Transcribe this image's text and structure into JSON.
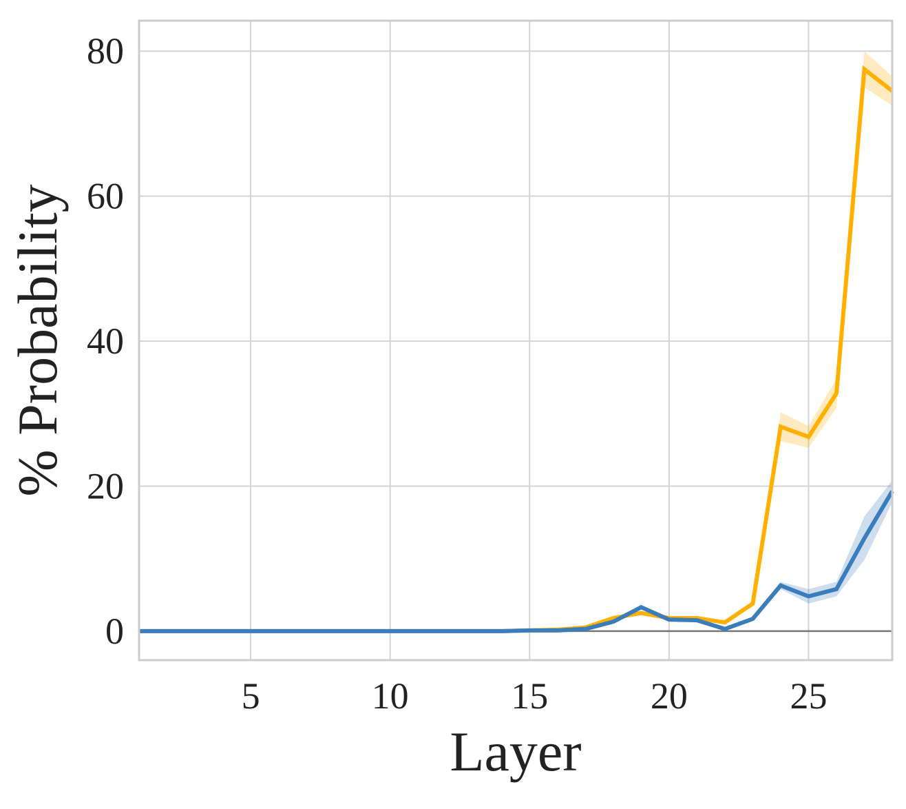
{
  "chart_data": {
    "type": "line",
    "x_label": "Layer",
    "y_label": "% Probability",
    "x": [
      1,
      2,
      3,
      4,
      5,
      6,
      7,
      8,
      9,
      10,
      11,
      12,
      13,
      14,
      15,
      16,
      17,
      18,
      19,
      20,
      21,
      22,
      23,
      24,
      25,
      26,
      27,
      28
    ],
    "series": [
      {
        "color": "#ffb000",
        "values": [
          0,
          0,
          0,
          0,
          0,
          0,
          0,
          0,
          0,
          0,
          0,
          0,
          0,
          0,
          0.1,
          0.2,
          0.5,
          1.8,
          2.5,
          1.8,
          1.8,
          1.2,
          3.8,
          28.2,
          26.8,
          32.8,
          77.5,
          74.5
        ],
        "errors": [
          0,
          0,
          0,
          0,
          0,
          0,
          0,
          0,
          0,
          0,
          0,
          0,
          0,
          0,
          0,
          0,
          0,
          0.2,
          0.3,
          0.2,
          0.2,
          0.2,
          0.4,
          2,
          1.5,
          2,
          2.5,
          2
        ]
      },
      {
        "color": "#3a7dba",
        "values": [
          0,
          0,
          0,
          0,
          0,
          0,
          0,
          0,
          0,
          0,
          0,
          0,
          0,
          0,
          0.1,
          0.1,
          0.3,
          1.3,
          3.3,
          1.6,
          1.5,
          0.3,
          1.7,
          6.3,
          4.8,
          5.8,
          12.8,
          19.3
        ],
        "errors": [
          0,
          0,
          0,
          0,
          0,
          0,
          0,
          0,
          0,
          0,
          0,
          0,
          0,
          0,
          0,
          0,
          0,
          0.2,
          0.3,
          0.2,
          0.2,
          0.1,
          0.3,
          0.5,
          1,
          1,
          3,
          1.5
        ]
      }
    ],
    "hline": 0,
    "xlim": [
      1,
      28
    ],
    "ylim": [
      -4,
      84.2
    ],
    "xticks": [
      5,
      10,
      15,
      20,
      25
    ],
    "yticks": [
      0,
      20,
      40,
      60,
      80
    ],
    "grid": true
  }
}
